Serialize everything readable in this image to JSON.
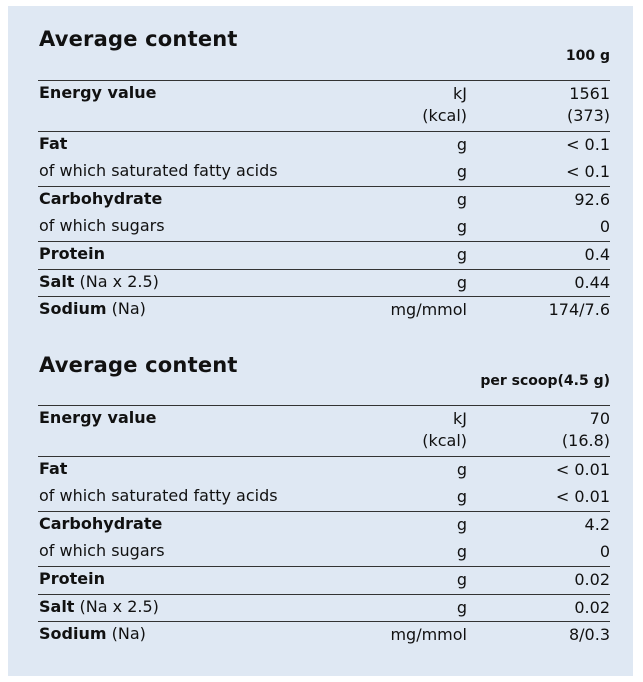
{
  "tables": [
    {
      "title": "Average content",
      "column_header": "100 g",
      "rows": [
        {
          "label": "Energy value",
          "extra": "",
          "bold": true,
          "unit": "kJ",
          "unit2": "(kcal)",
          "value": "1561",
          "value2": "(373)"
        },
        {
          "label": "Fat",
          "extra": "",
          "bold": true,
          "unit": "g",
          "value": "< 0.1"
        },
        {
          "label": "of which saturated fatty acids",
          "extra": "",
          "bold": false,
          "unit": "g",
          "value": "< 0.1"
        },
        {
          "label": "Carbohydrate",
          "extra": "",
          "bold": true,
          "unit": "g",
          "value": "92.6"
        },
        {
          "label": "of which sugars",
          "extra": "",
          "bold": false,
          "unit": "g",
          "value": "0"
        },
        {
          "label": "Protein",
          "extra": "",
          "bold": true,
          "unit": "g",
          "value": "0.4"
        },
        {
          "label": "Salt",
          "extra": " (Na x 2.5)",
          "bold": true,
          "unit": "g",
          "value": "0.44"
        },
        {
          "label": "Sodium",
          "extra": " (Na)",
          "bold": true,
          "unit": "mg/mmol",
          "value": "174/7.6"
        }
      ]
    },
    {
      "title": "Average content",
      "column_header": "per scoop(4.5 g)",
      "rows": [
        {
          "label": "Energy value",
          "extra": "",
          "bold": true,
          "unit": "kJ",
          "unit2": "(kcal)",
          "value": "70",
          "value2": "(16.8)"
        },
        {
          "label": "Fat",
          "extra": "",
          "bold": true,
          "unit": "g",
          "value": "< 0.01"
        },
        {
          "label": "of which saturated fatty acids",
          "extra": "",
          "bold": false,
          "unit": "g",
          "value": "< 0.01"
        },
        {
          "label": "Carbohydrate",
          "extra": "",
          "bold": true,
          "unit": "g",
          "value": "4.2"
        },
        {
          "label": "of which sugars",
          "extra": "",
          "bold": false,
          "unit": "g",
          "value": "0"
        },
        {
          "label": "Protein",
          "extra": "",
          "bold": true,
          "unit": "g",
          "value": "0.02"
        },
        {
          "label": "Salt",
          "extra": " (Na x 2.5)",
          "bold": true,
          "unit": "g",
          "value": "0.02"
        },
        {
          "label": "Sodium",
          "extra": " (Na)",
          "bold": true,
          "unit": "mg/mmol",
          "value": "8/0.3"
        }
      ]
    }
  ]
}
